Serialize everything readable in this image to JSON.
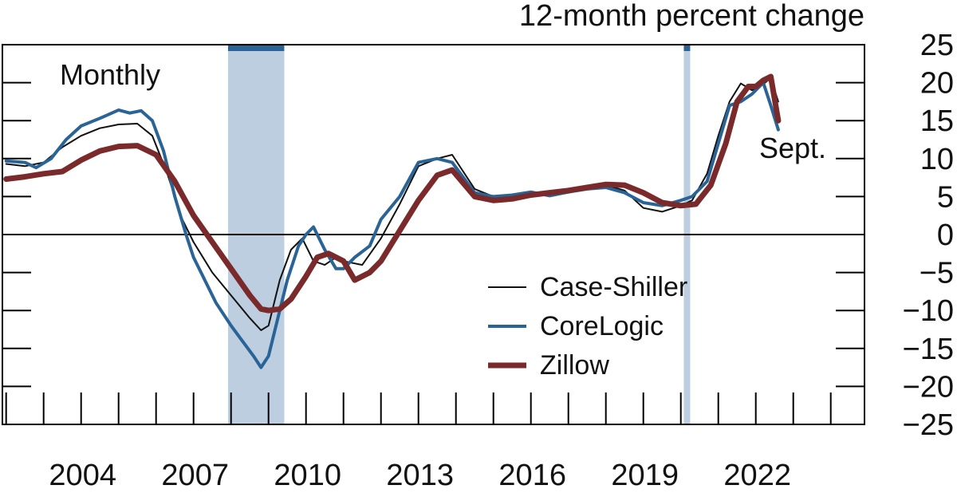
{
  "chart_data": {
    "type": "line",
    "title": "12-month percent change",
    "frequency_label": "Monthly",
    "end_label": "Sept.",
    "xlabel": "",
    "ylabel": "",
    "xlim": [
      2001.9,
      2024.9
    ],
    "ylim": [
      -25,
      25
    ],
    "x_ticks": [
      2004,
      2007,
      2010,
      2013,
      2016,
      2019,
      2022
    ],
    "y_ticks": [
      25,
      20,
      15,
      10,
      5,
      0,
      -5,
      -10,
      -15,
      -20,
      -25
    ],
    "y_tick_labels": [
      "25",
      "20",
      "15",
      "10",
      "5",
      "0",
      "−5",
      "−10",
      "−15",
      "−20",
      "−25"
    ],
    "grid": false,
    "legend_position": "bottom-center",
    "colors": {
      "recession_fill": "#bccee0",
      "recession_cap": "#2a6496",
      "zero_line": "#000000"
    },
    "recessions": [
      {
        "start": 2007.92,
        "end": 2009.42
      },
      {
        "start": 2020.08,
        "end": 2020.25
      }
    ],
    "series": [
      {
        "name": "Case-Shiller",
        "color": "#111111",
        "width": 2,
        "x": [
          2002.0,
          2002.5,
          2003.0,
          2003.5,
          2004.0,
          2004.5,
          2005.0,
          2005.5,
          2005.9,
          2006.3,
          2006.7,
          2007.0,
          2007.5,
          2008.0,
          2008.5,
          2008.8,
          2009.0,
          2009.3,
          2009.6,
          2009.9,
          2010.2,
          2010.5,
          2010.8,
          2011.0,
          2011.5,
          2012.0,
          2012.5,
          2013.0,
          2013.5,
          2013.9,
          2014.5,
          2015.0,
          2015.5,
          2016.0,
          2016.5,
          2017.0,
          2017.5,
          2018.0,
          2018.5,
          2019.0,
          2019.5,
          2020.0,
          2020.3,
          2020.7,
          2021.0,
          2021.3,
          2021.6,
          2021.9,
          2022.2,
          2022.4,
          2022.6
        ],
        "values": [
          9.3,
          9.0,
          9.5,
          11.5,
          13.0,
          14.0,
          14.5,
          14.6,
          13.0,
          8.0,
          2.0,
          -1.0,
          -5.0,
          -8.0,
          -11.0,
          -12.6,
          -12.0,
          -6.0,
          -2.0,
          -0.5,
          -3.5,
          -4.0,
          -3.0,
          -3.5,
          -4.0,
          -0.5,
          4.0,
          9.0,
          10.0,
          10.5,
          6.0,
          5.0,
          5.0,
          5.3,
          5.1,
          5.5,
          6.0,
          6.5,
          5.8,
          3.5,
          3.0,
          3.8,
          4.5,
          8.0,
          13.0,
          17.5,
          19.9,
          19.0,
          19.8,
          20.6,
          17.5
        ]
      },
      {
        "name": "CoreLogic",
        "color": "#2a6496",
        "width": 4,
        "x": [
          2002.0,
          2002.5,
          2002.8,
          2003.2,
          2003.6,
          2004.0,
          2004.5,
          2005.0,
          2005.3,
          2005.6,
          2005.9,
          2006.2,
          2006.5,
          2006.8,
          2007.0,
          2007.3,
          2007.6,
          2008.0,
          2008.3,
          2008.6,
          2008.8,
          2009.0,
          2009.2,
          2009.5,
          2009.8,
          2010.0,
          2010.2,
          2010.5,
          2010.8,
          2011.0,
          2011.3,
          2011.7,
          2012.0,
          2012.5,
          2013.0,
          2013.5,
          2013.9,
          2014.5,
          2015.0,
          2015.5,
          2016.0,
          2016.5,
          2017.0,
          2017.5,
          2018.0,
          2018.5,
          2019.0,
          2019.5,
          2020.0,
          2020.3,
          2020.7,
          2021.0,
          2021.3,
          2021.6,
          2021.9,
          2022.2,
          2022.4,
          2022.6
        ],
        "values": [
          9.7,
          9.5,
          8.8,
          10.0,
          12.5,
          14.3,
          15.3,
          16.4,
          16.0,
          16.3,
          15.0,
          11.0,
          5.0,
          0.0,
          -3.0,
          -6.0,
          -9.0,
          -12.0,
          -14.0,
          -16.0,
          -17.5,
          -16.0,
          -12.0,
          -6.0,
          -1.5,
          0.0,
          1.0,
          -2.0,
          -4.5,
          -4.5,
          -3.0,
          -1.5,
          2.0,
          5.0,
          9.5,
          10.0,
          9.5,
          5.5,
          5.0,
          5.2,
          5.6,
          5.1,
          5.6,
          6.0,
          6.2,
          5.5,
          4.2,
          3.8,
          4.5,
          5.0,
          7.0,
          12.0,
          17.0,
          17.5,
          18.5,
          20.0,
          17.0,
          13.8
        ]
      },
      {
        "name": "Zillow",
        "color": "#7a2a2a",
        "width": 7,
        "x": [
          2002.0,
          2002.5,
          2003.0,
          2003.5,
          2004.0,
          2004.5,
          2005.0,
          2005.5,
          2006.0,
          2006.5,
          2007.0,
          2007.5,
          2008.0,
          2008.5,
          2008.8,
          2009.0,
          2009.3,
          2009.6,
          2010.0,
          2010.3,
          2010.6,
          2011.0,
          2011.3,
          2011.7,
          2012.0,
          2012.5,
          2013.0,
          2013.5,
          2013.9,
          2014.5,
          2015.0,
          2015.5,
          2016.0,
          2016.5,
          2017.0,
          2017.5,
          2018.0,
          2018.5,
          2019.0,
          2019.5,
          2020.0,
          2020.4,
          2020.8,
          2021.2,
          2021.5,
          2021.8,
          2022.0,
          2022.2,
          2022.4,
          2022.6
        ],
        "values": [
          7.3,
          7.6,
          8.0,
          8.3,
          9.8,
          11.0,
          11.6,
          11.7,
          10.5,
          7.0,
          2.5,
          -1.0,
          -4.5,
          -8.0,
          -9.8,
          -10.0,
          -9.8,
          -8.5,
          -5.5,
          -3.0,
          -2.5,
          -3.5,
          -6.0,
          -5.0,
          -3.5,
          0.5,
          4.5,
          7.8,
          8.5,
          5.0,
          4.5,
          4.7,
          5.2,
          5.5,
          5.8,
          6.2,
          6.6,
          6.5,
          5.5,
          4.2,
          3.8,
          4.0,
          6.5,
          12.0,
          17.5,
          19.5,
          19.5,
          20.3,
          20.8,
          15.0
        ]
      }
    ]
  }
}
